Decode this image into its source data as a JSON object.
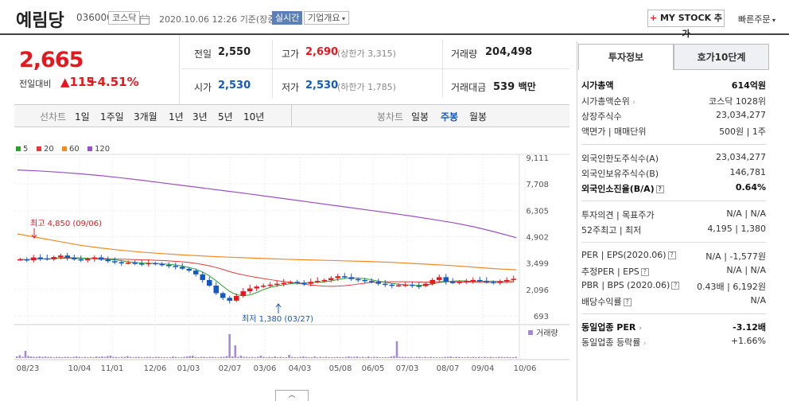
{
  "header": {
    "name": "예림당",
    "code": "036000",
    "market": "코스닥",
    "datetime": "2020.10.06 12:26",
    "basis": "기준(장중)",
    "realtime": "실시간",
    "company_info": "기업개요",
    "mystock": "MY STOCK 추가",
    "quick_order": "빠른주문"
  },
  "price": {
    "current": "2,665",
    "change_label": "전일대비",
    "change": "115",
    "change_pct": "+4.51%"
  },
  "quote": {
    "prev_label": "전일",
    "prev": "2,550",
    "high_label": "고가",
    "high": "2,690",
    "upper_limit": "(상한가 3,315)",
    "volume_label": "거래량",
    "volume": "204,498",
    "open_label": "시가",
    "open": "2,530",
    "low_label": "저가",
    "low": "2,530",
    "lower_limit": "(하한가 1,785)",
    "amount_label": "거래대금",
    "amount": "539",
    "amount_unit": "백만"
  },
  "period_bar": {
    "line_label": "선차트",
    "line_items": [
      "1일",
      "1주일",
      "3개월",
      "1년",
      "3년",
      "5년",
      "10년"
    ],
    "candle_label": "봉차트",
    "candle_items": [
      "일봉",
      "주봉",
      "월봉"
    ],
    "candle_active": "주봉"
  },
  "colors": {
    "up": "#e8161f",
    "down": "#1259c3",
    "ma5": "#2ea02e",
    "ma20": "#e23a3a",
    "ma60": "#f08a24",
    "ma120": "#9a50c8"
  },
  "chart_data": {
    "type": "candlestick",
    "legend": [
      "5",
      "20",
      "60",
      "120"
    ],
    "y_ticks": [
      "9,111",
      "7,708",
      "6,305",
      "4,902",
      "3,499",
      "2,096",
      "693"
    ],
    "ylim": [
      693,
      9111
    ],
    "x_ticks": [
      "08/23",
      "10/04",
      "11/01",
      "12/06",
      "01/03",
      "02/07",
      "03/06",
      "04/03",
      "05/08",
      "06/05",
      "07/03",
      "08/07",
      "09/04",
      "10/06"
    ],
    "max_annotation": "최고 4,850 (09/06)",
    "min_annotation": "최저 1,380 (03/27)",
    "volume_label": "거래량",
    "ma120": [
      8450,
      8400,
      8330,
      8250,
      8150,
      8030,
      7900,
      7760,
      7620,
      7480,
      7340,
      7200,
      7050,
      6900,
      6750,
      6600,
      6450,
      6300,
      6150,
      5990,
      5820,
      5640,
      5420,
      5150,
      4850
    ],
    "ma60": [
      5050,
      4850,
      4650,
      4450,
      4300,
      4180,
      4080,
      4000,
      3930,
      3870,
      3820,
      3780,
      3740,
      3700,
      3670,
      3640,
      3610,
      3580,
      3540,
      3480,
      3420,
      3360,
      3280,
      3200,
      3140
    ],
    "volumes": [
      4,
      7,
      3,
      18,
      5,
      4,
      3,
      3,
      4,
      3,
      4,
      3,
      3,
      2,
      3,
      3,
      2,
      3,
      3,
      2,
      3,
      4,
      3,
      2,
      3,
      2,
      3,
      2,
      4,
      3,
      4,
      3,
      5,
      6,
      3,
      3,
      2,
      3,
      3,
      5,
      3,
      2,
      3,
      3,
      2,
      2,
      3,
      3,
      2,
      3,
      3,
      2,
      2,
      2,
      2,
      4,
      3,
      2,
      2,
      3,
      4,
      5,
      6,
      3,
      2,
      3,
      3,
      2,
      3,
      3,
      2,
      2,
      3,
      3,
      5,
      60,
      4,
      32,
      3,
      6,
      3,
      3,
      2,
      3,
      2,
      3,
      6,
      3,
      2,
      3,
      2,
      4,
      2,
      3,
      2,
      2,
      8,
      3,
      2,
      2,
      3,
      4,
      3,
      2,
      2,
      4,
      2,
      3,
      2,
      3,
      2,
      2,
      2,
      3,
      2,
      2,
      3,
      4,
      3,
      3,
      4,
      2,
      3,
      2,
      4,
      2,
      3,
      3,
      2,
      2,
      2,
      2,
      4,
      5,
      42,
      3,
      3,
      3,
      2,
      3,
      2,
      3,
      3,
      2,
      3,
      2,
      3,
      2,
      2,
      2,
      2,
      3,
      3,
      4,
      2,
      3,
      3,
      2,
      2,
      3,
      2,
      3,
      2,
      3,
      2,
      3,
      2,
      3,
      2,
      2,
      3,
      3,
      2,
      3,
      2,
      2,
      3
    ]
  },
  "right_panel": {
    "tabs": [
      "투자정보",
      "호가10단계"
    ],
    "market_cap_label": "시가총액",
    "market_cap": "614억원",
    "market_rank_label": "시가총액순위",
    "market_rank": "코스닥 1028위",
    "shares_label": "상장주식수",
    "shares": "23,034,277",
    "par_label": "액면가 | 매매단위",
    "par": "500원 | 1주",
    "foreign_limit_label": "외국인한도주식수(A)",
    "foreign_limit": "23,034,277",
    "foreign_hold_label": "외국인보유주식수(B)",
    "foreign_hold": "146,781",
    "foreign_ratio_label": "외국인소진율(B/A)",
    "foreign_ratio": "0.64%",
    "opinion_label": "투자의견 | 목표주가",
    "opinion": "N/A | N/A",
    "week52_label": "52주최고 | 최저",
    "week52": "4,195 | 1,380",
    "per_label": "PER | EPS(2020.06)",
    "per": "N/A | -1,577원",
    "est_per_label": "추정PER | EPS",
    "est_per": "N/A | N/A",
    "pbr_label": "PBR | BPS (2020.06)",
    "pbr": "0.43배 | 6,192원",
    "div_label": "배당수익률",
    "div": "N/A",
    "ind_per_label": "동일업종 PER",
    "ind_per": "-3.12배",
    "ind_chg_label": "동일업종 등락률",
    "ind_chg": "+1.66%"
  }
}
